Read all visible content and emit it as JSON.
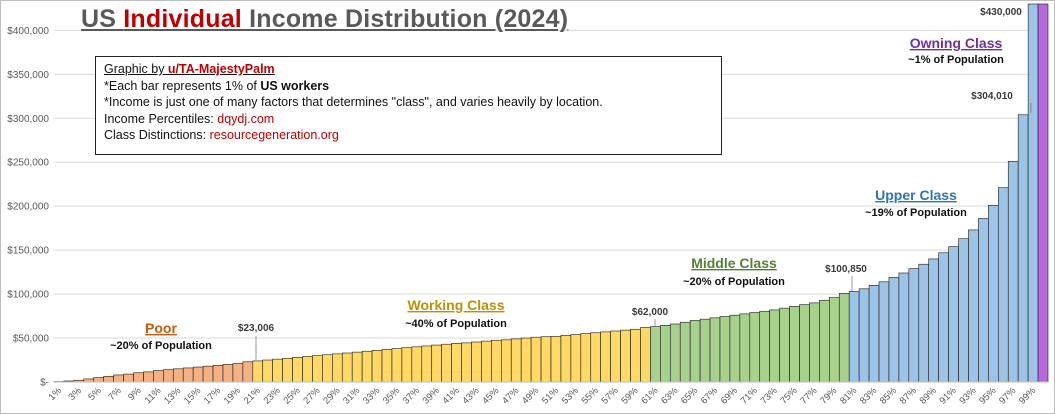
{
  "title": {
    "prefix": "US ",
    "highlight": "Individual",
    "suffix": " Income Distribution (2024)"
  },
  "notes": {
    "credit_prefix": "Graphic by ",
    "credit_user": "u/TA-MajestyPalm",
    "line1_prefix": "*Each bar represents 1% of ",
    "line1_bold": "US workers",
    "line2": "*Income is just one of many factors that determines \"class\", and varies heavily by location.",
    "line3_prefix": "Income Percentiles: ",
    "line3_link": "dqydj.com",
    "line4_prefix": "Class Distinctions: ",
    "line4_link": "resourcegeneration.org"
  },
  "chart_data": {
    "type": "bar",
    "ylim": [
      0,
      430000
    ],
    "yticks": [
      {
        "value": 0,
        "label": "$-"
      },
      {
        "value": 50000,
        "label": "$50,000"
      },
      {
        "value": 100000,
        "label": "$100,000"
      },
      {
        "value": 150000,
        "label": "$150,000"
      },
      {
        "value": 200000,
        "label": "$200,000"
      },
      {
        "value": 250000,
        "label": "$250,000"
      },
      {
        "value": 300000,
        "label": "$300,000"
      },
      {
        "value": 350000,
        "label": "$350,000"
      },
      {
        "value": 400000,
        "label": "$400,000"
      }
    ],
    "categories": [
      "1%",
      "2%",
      "3%",
      "4%",
      "5%",
      "6%",
      "7%",
      "8%",
      "9%",
      "10%",
      "11%",
      "12%",
      "13%",
      "14%",
      "15%",
      "16%",
      "17%",
      "18%",
      "19%",
      "20%",
      "21%",
      "22%",
      "23%",
      "24%",
      "25%",
      "26%",
      "27%",
      "28%",
      "29%",
      "30%",
      "31%",
      "32%",
      "33%",
      "34%",
      "35%",
      "36%",
      "37%",
      "38%",
      "39%",
      "40%",
      "41%",
      "42%",
      "43%",
      "44%",
      "45%",
      "46%",
      "47%",
      "48%",
      "49%",
      "50%",
      "51%",
      "52%",
      "53%",
      "54%",
      "55%",
      "56%",
      "57%",
      "58%",
      "59%",
      "60%",
      "61%",
      "62%",
      "63%",
      "64%",
      "65%",
      "66%",
      "67%",
      "68%",
      "69%",
      "70%",
      "71%",
      "72%",
      "73%",
      "74%",
      "75%",
      "76%",
      "77%",
      "78%",
      "79%",
      "80%",
      "81%",
      "82%",
      "83%",
      "84%",
      "85%",
      "86%",
      "87%",
      "88%",
      "89%",
      "90%",
      "91%",
      "92%",
      "93%",
      "94%",
      "95%",
      "96%",
      "97%",
      "98%",
      "99%",
      "100%"
    ],
    "shown_tick_labels": [
      "1%",
      "3%",
      "5%",
      "7%",
      "9%",
      "11%",
      "13%",
      "15%",
      "17%",
      "19%",
      "21%",
      "23%",
      "25%",
      "27%",
      "29%",
      "31%",
      "33%",
      "35%",
      "37%",
      "39%",
      "41%",
      "43%",
      "45%",
      "47%",
      "49%",
      "51%",
      "53%",
      "55%",
      "57%",
      "59%",
      "61%",
      "63%",
      "65%",
      "67%",
      "69%",
      "71%",
      "73%",
      "75%",
      "77%",
      "79%",
      "81%",
      "83%",
      "85%",
      "87%",
      "89%",
      "91%",
      "93%",
      "95%",
      "97%",
      "99%"
    ],
    "values": [
      500,
      1200,
      2000,
      3500,
      5000,
      6500,
      8000,
      9000,
      10500,
      11500,
      13000,
      14000,
      15000,
      16000,
      17000,
      18000,
      19000,
      20000,
      21000,
      23006,
      24000,
      25000,
      26000,
      27000,
      28000,
      29000,
      30000,
      31000,
      32000,
      33000,
      34000,
      35000,
      36000,
      37000,
      38000,
      39000,
      40000,
      41000,
      42000,
      43000,
      44000,
      44500,
      45500,
      46500,
      47500,
      48000,
      49000,
      50000,
      51000,
      51500,
      52000,
      53000,
      54000,
      55000,
      56000,
      57000,
      58000,
      59000,
      60000,
      62000,
      63000,
      64500,
      66000,
      68000,
      70000,
      71500,
      73000,
      74500,
      76000,
      77500,
      79000,
      80500,
      82000,
      84000,
      86000,
      88000,
      90000,
      93000,
      96000,
      100850,
      103000,
      106000,
      110000,
      114000,
      119000,
      124000,
      129000,
      134000,
      140000,
      147000,
      154000,
      163000,
      173000,
      186000,
      201000,
      221000,
      251000,
      304010,
      430000,
      430000
    ],
    "groups": [
      {
        "name": "Poor",
        "population": "~20% of Population",
        "start": 1,
        "end": 20,
        "color": "#f4b183",
        "text_color": "#c55a11"
      },
      {
        "name": "Working Class",
        "population": "~40% of Population",
        "start": 21,
        "end": 60,
        "color": "#ffd966",
        "text_color": "#bf9000"
      },
      {
        "name": "Middle Class",
        "population": "~20% of Population",
        "start": 61,
        "end": 80,
        "color": "#a9d18e",
        "text_color": "#548235"
      },
      {
        "name": "Upper Class",
        "population": "~19% of Population",
        "start": 81,
        "end": 99,
        "color": "#9dc3e6",
        "text_color": "#2e75b6"
      },
      {
        "name": "Owning Class",
        "population": "~1% of Population",
        "start": 100,
        "end": 100,
        "color": "#b868e0",
        "text_color": "#7030a0"
      }
    ],
    "annotations": [
      {
        "label": "$23,006",
        "bar": 20
      },
      {
        "label": "$62,000",
        "bar": 60
      },
      {
        "label": "$100,850",
        "bar": 80
      },
      {
        "label": "$304,010",
        "bar": 98
      },
      {
        "label": "$430,000",
        "bar": 100
      }
    ]
  }
}
